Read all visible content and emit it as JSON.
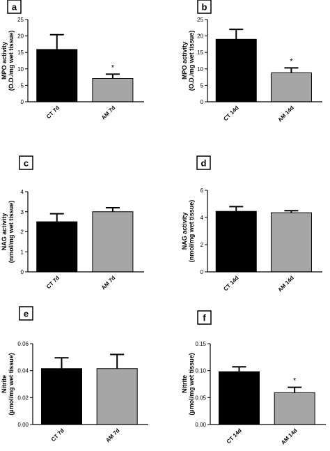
{
  "chart_data": [
    {
      "type": "bar",
      "panel": "a",
      "categories": [
        "CT 7d",
        "AM 7d"
      ],
      "values": [
        15.9,
        7.1
      ],
      "errors": [
        4.5,
        1.3
      ],
      "colors": [
        "#000000",
        "#a6a6a6"
      ],
      "significance": [
        "",
        "*"
      ],
      "ylabel": [
        "MPO activity",
        "(O.D./mg wet tissue)"
      ],
      "ylim": [
        0,
        25
      ],
      "yticks": [
        "0",
        "5",
        "10",
        "15",
        "20",
        "25"
      ],
      "ytick_values": [
        0,
        5,
        10,
        15,
        20,
        25
      ]
    },
    {
      "type": "bar",
      "panel": "b",
      "categories": [
        "CT 14d",
        "AM 14d"
      ],
      "values": [
        19.0,
        8.8
      ],
      "errors": [
        3.0,
        1.5
      ],
      "colors": [
        "#000000",
        "#a6a6a6"
      ],
      "significance": [
        "",
        "*"
      ],
      "ylabel": [
        "MPO activity",
        "(O.D./mg wet tissue)"
      ],
      "ylim": [
        0,
        25
      ],
      "yticks": [
        "0",
        "5",
        "10",
        "15",
        "20",
        "25"
      ],
      "ytick_values": [
        0,
        5,
        10,
        15,
        20,
        25
      ]
    },
    {
      "type": "bar",
      "panel": "c",
      "categories": [
        "CT 7d",
        "AM 7d"
      ],
      "values": [
        2.5,
        3.0
      ],
      "errors": [
        0.4,
        0.2
      ],
      "colors": [
        "#000000",
        "#a6a6a6"
      ],
      "significance": [
        "",
        ""
      ],
      "ylabel": [
        "NAG activity",
        "(nmol/mg wet tissue)"
      ],
      "ylim": [
        0,
        4
      ],
      "yticks": [
        "0",
        "1",
        "2",
        "3",
        "4"
      ],
      "ytick_values": [
        0,
        1,
        2,
        3,
        4
      ]
    },
    {
      "type": "bar",
      "panel": "d",
      "categories": [
        "CT 14d",
        "AM 14d"
      ],
      "values": [
        4.45,
        4.35
      ],
      "errors": [
        0.35,
        0.15
      ],
      "colors": [
        "#000000",
        "#a6a6a6"
      ],
      "significance": [
        "",
        ""
      ],
      "ylabel": [
        "NAG activity",
        "(nmol/mg wet tissue)"
      ],
      "ylim": [
        0,
        6
      ],
      "yticks": [
        "0",
        "2",
        "4",
        "6"
      ],
      "ytick_values": [
        0,
        2,
        4,
        6
      ]
    },
    {
      "type": "bar",
      "panel": "e",
      "categories": [
        "CT 7d",
        "AM 7d"
      ],
      "values": [
        0.0415,
        0.0415
      ],
      "errors": [
        0.008,
        0.0105
      ],
      "colors": [
        "#000000",
        "#a6a6a6"
      ],
      "significance": [
        "",
        ""
      ],
      "ylabel": [
        "Nitrite",
        "(µmol/mg wet tissue)"
      ],
      "ylim": [
        0,
        0.06
      ],
      "yticks": [
        "0.00",
        "0.02",
        "0.04",
        "0.06"
      ],
      "ytick_values": [
        0,
        0.02,
        0.04,
        0.06
      ]
    },
    {
      "type": "bar",
      "panel": "f",
      "categories": [
        "CT 14d",
        "AM 14d"
      ],
      "values": [
        0.098,
        0.059
      ],
      "errors": [
        0.009,
        0.01
      ],
      "colors": [
        "#000000",
        "#a6a6a6"
      ],
      "significance": [
        "",
        "*"
      ],
      "ylabel": [
        "Nitrite",
        "(µmol/mg wet tissue)"
      ],
      "ylim": [
        0,
        0.15
      ],
      "yticks": [
        "0.00",
        "0.05",
        "0.10",
        "0.15"
      ],
      "ytick_values": [
        0,
        0.05,
        0.1,
        0.15
      ]
    }
  ]
}
